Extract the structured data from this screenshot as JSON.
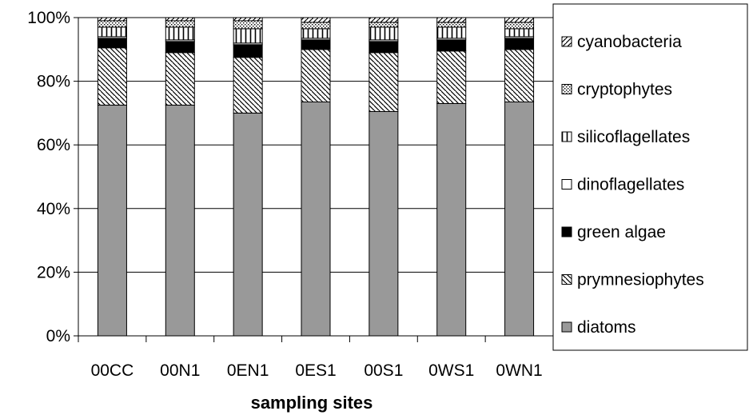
{
  "chart_data": {
    "type": "bar",
    "stacked": true,
    "percent": true,
    "title": "",
    "xlabel": "sampling sites",
    "ylabel": "",
    "ylim": [
      0,
      100
    ],
    "yticks": [
      "0%",
      "20%",
      "40%",
      "60%",
      "80%",
      "100%"
    ],
    "grid": true,
    "legend_position": "right",
    "categories": [
      "00CC",
      "00N1",
      "0EN1",
      "0ES1",
      "00S1",
      "0WS1",
      "0WN1"
    ],
    "series": [
      {
        "name": "diatoms",
        "pattern": "solid-gray",
        "color": "#999999",
        "values": [
          72.5,
          72.5,
          70,
          73.5,
          70.5,
          73,
          73.5
        ]
      },
      {
        "name": "prymnesiophytes",
        "pattern": "diagonal-down",
        "color": "#ffffff",
        "values": [
          18,
          16.5,
          17.5,
          16.5,
          18.5,
          16.5,
          16.5
        ]
      },
      {
        "name": "green algae",
        "pattern": "solid-black",
        "color": "#000000",
        "values": [
          3,
          3.5,
          4,
          3,
          3.5,
          3.5,
          3.5
        ]
      },
      {
        "name": "dinoflagellates",
        "pattern": "none",
        "color": "#ffffff",
        "values": [
          0.5,
          0.5,
          0.5,
          0.5,
          0.5,
          0.5,
          0.5
        ]
      },
      {
        "name": "silicoflagellates",
        "pattern": "vertical",
        "color": "#ffffff",
        "values": [
          3,
          4,
          4.5,
          3,
          4,
          3.5,
          2.5
        ]
      },
      {
        "name": "cryptophytes",
        "pattern": "dots",
        "color": "#ffffff",
        "values": [
          2,
          2,
          2.5,
          2,
          1.5,
          1.5,
          2
        ]
      },
      {
        "name": "cyanobacteria",
        "pattern": "diagonal-up",
        "color": "#ffffff",
        "values": [
          1,
          1,
          1,
          1.5,
          1.5,
          1.5,
          1.5
        ]
      }
    ]
  }
}
